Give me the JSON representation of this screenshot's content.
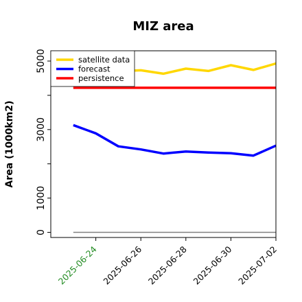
{
  "chart_data": {
    "type": "line",
    "title": "MIZ area",
    "xlabel": "",
    "ylabel": "Area (1000km2)",
    "ylim": [
      -150,
      5300
    ],
    "x": [
      "2025-06-23",
      "2025-06-24",
      "2025-06-25",
      "2025-06-26",
      "2025-06-27",
      "2025-06-28",
      "2025-06-29",
      "2025-06-30",
      "2025-07-01",
      "2025-07-02"
    ],
    "xlim": [
      "2025-06-22",
      "2025-07-02"
    ],
    "x_ticks": [
      {
        "label": "2025-06-24",
        "color": "#228b22"
      },
      {
        "label": "2025-06-26",
        "color": "#000000"
      },
      {
        "label": "2025-06-28",
        "color": "#000000"
      },
      {
        "label": "2025-06-30",
        "color": "#000000"
      },
      {
        "label": "2025-07-02",
        "color": "#000000"
      }
    ],
    "y_ticks": [
      0,
      1000,
      2000,
      3000,
      4000,
      5000
    ],
    "y_tick_labels": [
      "0",
      "1000",
      "",
      "3000",
      "",
      "5000"
    ],
    "legend_position": "top-left",
    "grid": false,
    "series": [
      {
        "name": "satellite data",
        "color": "#ffd700",
        "values": [
          4520,
          4590,
          4700,
          4730,
          4630,
          4780,
          4710,
          4880,
          4740,
          4930
        ]
      },
      {
        "name": "forecast",
        "color": "#0000ff",
        "values": [
          3130,
          2890,
          2510,
          2420,
          2300,
          2360,
          2330,
          2310,
          2240,
          2530
        ]
      },
      {
        "name": "persistence",
        "color": "#ff0000",
        "values": [
          4220,
          4220,
          4220,
          4220,
          4220,
          4220,
          4220,
          4220,
          4220,
          4220
        ]
      }
    ],
    "reference_line": {
      "value": 0,
      "color": "#808080"
    }
  }
}
